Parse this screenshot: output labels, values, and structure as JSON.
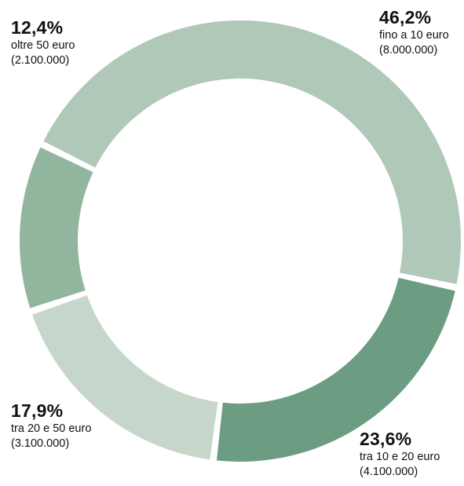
{
  "chart_data": {
    "type": "pie",
    "style": "donut",
    "slices": [
      {
        "percent_label": "46,2%",
        "value": 46.2,
        "label": "fino a 10 euro",
        "count": "(8.000.000)",
        "color": "#b0c8b8"
      },
      {
        "percent_label": "23,6%",
        "value": 23.6,
        "label": "tra 10 e 20 euro",
        "count": "(4.100.000)",
        "color": "#6c9c82"
      },
      {
        "percent_label": "17,9%",
        "value": 17.9,
        "label": "tra 20 e 50 euro",
        "count": "(3.100.000)",
        "color": "#c7d6ca"
      },
      {
        "percent_label": "12,4%",
        "value": 12.4,
        "label": "oltre 50 euro",
        "count": "(2.100.000)",
        "color": "#92b59e"
      }
    ]
  }
}
